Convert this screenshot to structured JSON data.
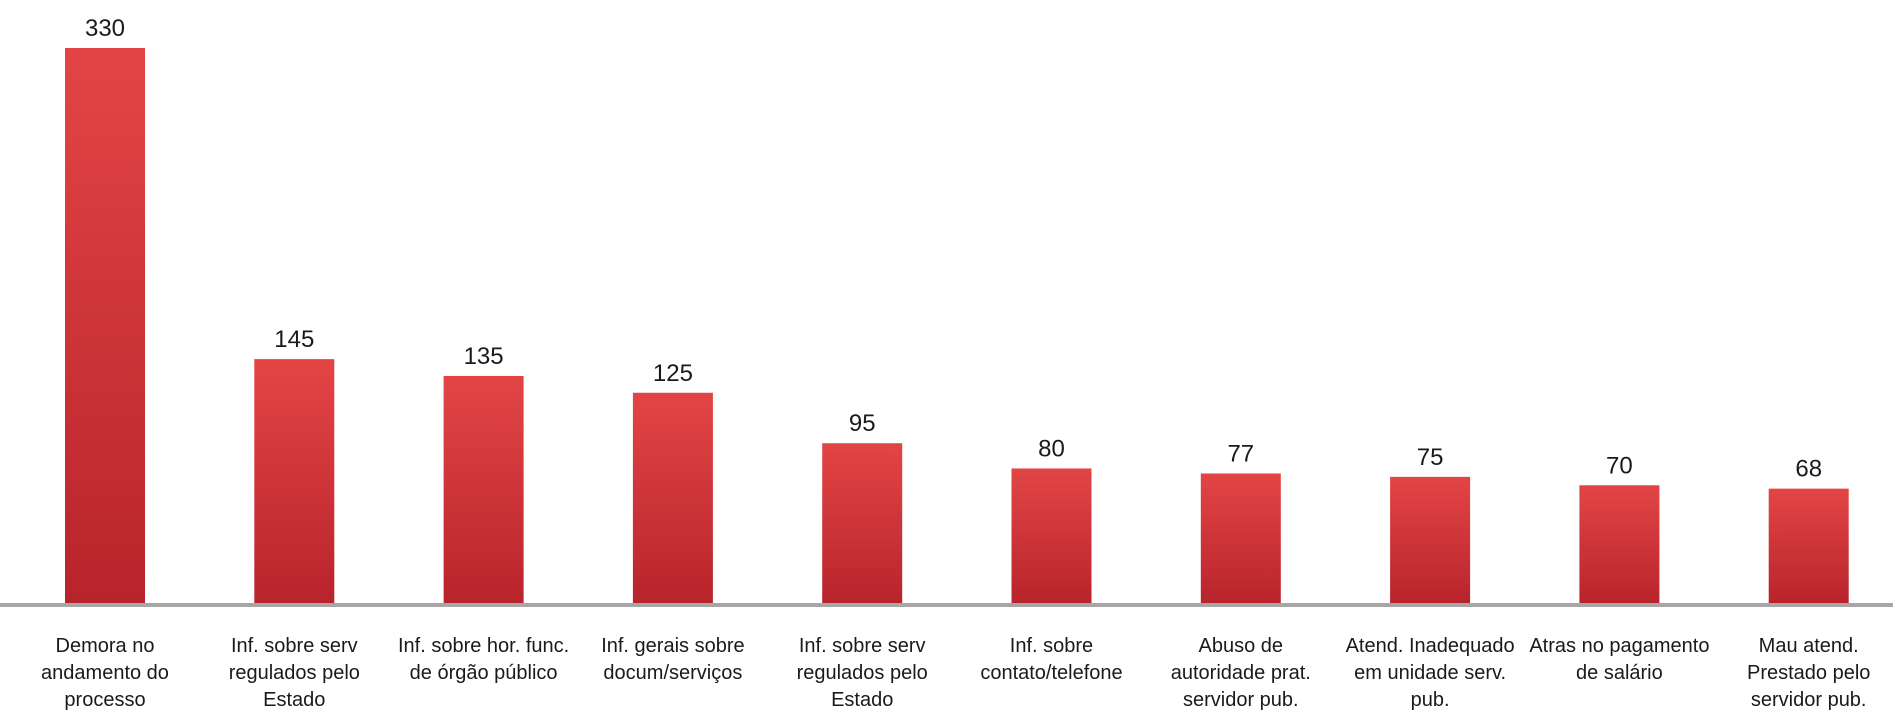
{
  "chart_data": {
    "type": "bar",
    "title": "",
    "xlabel": "",
    "ylabel": "",
    "ylim": [
      0,
      330
    ],
    "grid": false,
    "legend": "none",
    "categories": [
      [
        "Demora no",
        "andamento do",
        "processo"
      ],
      [
        "Inf. sobre serv",
        "regulados pelo",
        "Estado"
      ],
      [
        "Inf. sobre hor. func.",
        "de órgão público"
      ],
      [
        "Inf. gerais sobre",
        "docum/serviços"
      ],
      [
        "Inf. sobre serv",
        "regulados pelo",
        "Estado"
      ],
      [
        "Inf. sobre",
        "contato/telefone"
      ],
      [
        "Abuso de",
        "autoridade prat.",
        "servidor pub."
      ],
      [
        "Atend. Inadequado",
        "em unidade serv.",
        "pub."
      ],
      [
        "Atras no pagamento",
        "de salário"
      ],
      [
        "Mau atend.",
        "Prestado pelo",
        "servidor pub."
      ]
    ],
    "values": [
      330,
      145,
      135,
      125,
      95,
      80,
      77,
      75,
      70,
      68
    ],
    "value_labels": [
      "330",
      "145",
      "135",
      "125",
      "95",
      "80",
      "77",
      "75",
      "70",
      "68"
    ],
    "colors": {
      "bar_top": "#e34545",
      "bar_bottom": "#b8242c",
      "axis": "#a6a6a6",
      "text": "#1a1a1a"
    }
  }
}
